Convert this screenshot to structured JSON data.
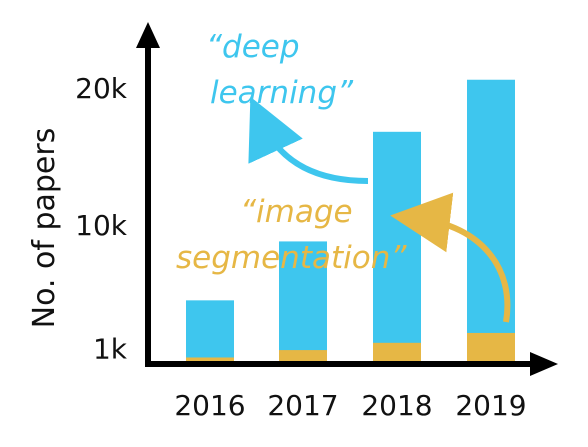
{
  "chart_data": {
    "type": "bar",
    "categories": [
      "2016",
      "2017",
      "2018",
      "2019"
    ],
    "ylabel": "No. of papers",
    "xlabel": "",
    "y_ticks": [
      {
        "label": "1k",
        "value": 1000
      },
      {
        "label": "10k",
        "value": 10000
      },
      {
        "label": "20k",
        "value": 20000
      }
    ],
    "series": [
      {
        "legend": "“deep learning”",
        "values": [
          4500,
          8800,
          16800,
          20600
        ]
      },
      {
        "legend": "“image segmentation”",
        "values": [
          330,
          870,
          1400,
          2120
        ]
      }
    ],
    "ylim": [
      0,
      23500
    ],
    "annotations": {
      "deep_learning": {
        "line1": "“deep",
        "line2": "learning”"
      },
      "image_segmentation": {
        "line1": "“image",
        "line2": "segmentation”"
      }
    }
  },
  "colors": {
    "deep_learning": "#3ec6ee",
    "image_segmentation": "#e6b745",
    "axis": "#000000"
  }
}
